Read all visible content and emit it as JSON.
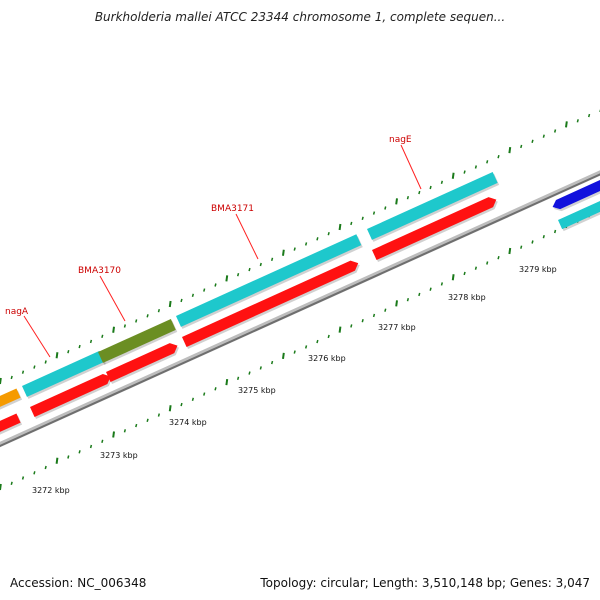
{
  "title": "Burkholderia mallei ATCC 23344 chromosome 1, complete sequen...",
  "footer": {
    "accession": "Accession: NC_006348",
    "stats": "Topology: circular; Length: 3,510,148 bp; Genes: 3,047"
  },
  "colors": {
    "cyan_feature": "#1ec8cc",
    "red_feature": "#ff1111",
    "olive_feature": "#6b8e23",
    "orange_feature": "#f59a00",
    "blue_feature": "#1111dd",
    "ticks": "#1a7a1a",
    "gene_label": "#cc0000",
    "backbone": "#888888"
  },
  "tick_labels": [
    "3272 kbp",
    "3273 kbp",
    "3274 kbp",
    "3275 kbp",
    "3276 kbp",
    "3277 kbp",
    "3278 kbp",
    "3279 kbp"
  ],
  "gene_labels": [
    "nagA",
    "BMA3170",
    "BMA3171",
    "nagE"
  ]
}
